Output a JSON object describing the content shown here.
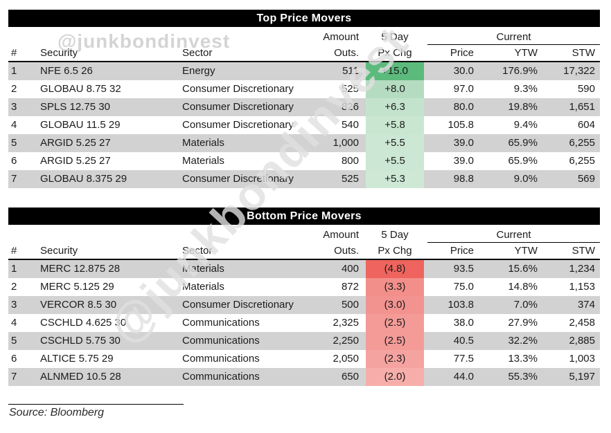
{
  "watermarks": {
    "header": "@junkbondinvest",
    "diagonal": "@junkbondinvest"
  },
  "columns": {
    "num": "#",
    "security": "Security",
    "sector": "Sector",
    "amount_line1": "Amount",
    "amount_line2": "Outs.",
    "chg_line1": "5 Day",
    "chg_line2": "Px Chg",
    "current_group": "Current",
    "price": "Price",
    "ytw": "YTW",
    "stw": "STW"
  },
  "colors": {
    "row_stripe": "#d2d2d2",
    "title_bar_bg": "#000000",
    "title_bar_text": "#ffffff",
    "gain_strong": "#5cba7d",
    "gain_light": "#cce7d3",
    "loss_strong": "#ef645e",
    "loss_light": "#f7aeab"
  },
  "tables": [
    {
      "title": "Top Price Movers",
      "rows": [
        {
          "num": "1",
          "security": "NFE 6.5 26",
          "sector": "Energy",
          "amount": "511",
          "px_chg": "+15.0",
          "px_chg_color": "#5cba7d",
          "price": "30.0",
          "ytw": "176.9%",
          "stw": "17,322"
        },
        {
          "num": "2",
          "security": "GLOBAU 8.75 32",
          "sector": "Consumer Discretionary",
          "amount": "525",
          "px_chg": "+8.0",
          "px_chg_color": "#b5dcc0",
          "price": "97.0",
          "ytw": "9.3%",
          "stw": "590"
        },
        {
          "num": "3",
          "security": "SPLS 12.75 30",
          "sector": "Consumer Discretionary",
          "amount": "826",
          "px_chg": "+6.3",
          "px_chg_color": "#c4e3cd",
          "price": "80.0",
          "ytw": "19.8%",
          "stw": "1,651"
        },
        {
          "num": "4",
          "security": "GLOBAU 11.5 29",
          "sector": "Consumer Discretionary",
          "amount": "540",
          "px_chg": "+5.8",
          "px_chg_color": "#c9e6d1",
          "price": "105.8",
          "ytw": "9.4%",
          "stw": "604"
        },
        {
          "num": "5",
          "security": "ARGID 5.25 27",
          "sector": "Materials",
          "amount": "1,000",
          "px_chg": "+5.5",
          "px_chg_color": "#cce7d3",
          "price": "39.0",
          "ytw": "65.9%",
          "stw": "6,255"
        },
        {
          "num": "6",
          "security": "ARGID 5.25 27",
          "sector": "Materials",
          "amount": "800",
          "px_chg": "+5.5",
          "px_chg_color": "#cce7d3",
          "price": "39.0",
          "ytw": "65.9%",
          "stw": "6,255"
        },
        {
          "num": "7",
          "security": "GLOBAU 8.375 29",
          "sector": "Consumer Discretionary",
          "amount": "525",
          "px_chg": "+5.3",
          "px_chg_color": "#cee8d5",
          "price": "98.8",
          "ytw": "9.0%",
          "stw": "569"
        }
      ]
    },
    {
      "title": "Bottom Price Movers",
      "rows": [
        {
          "num": "1",
          "security": "MERC 12.875 28",
          "sector": "Materials",
          "amount": "400",
          "px_chg": "(4.8)",
          "px_chg_color": "#ef645e",
          "price": "93.5",
          "ytw": "15.6%",
          "stw": "1,234"
        },
        {
          "num": "2",
          "security": "MERC 5.125 29",
          "sector": "Materials",
          "amount": "872",
          "px_chg": "(3.3)",
          "px_chg_color": "#f28f8a",
          "price": "75.0",
          "ytw": "14.8%",
          "stw": "1,153"
        },
        {
          "num": "3",
          "security": "VERCOR 8.5 30",
          "sector": "Consumer Discretionary",
          "amount": "500",
          "px_chg": "(3.0)",
          "px_chg_color": "#f29390",
          "price": "103.8",
          "ytw": "7.0%",
          "stw": "374"
        },
        {
          "num": "4",
          "security": "CSCHLD 4.625 30",
          "sector": "Communications",
          "amount": "2,325",
          "px_chg": "(2.5)",
          "px_chg_color": "#f49b98",
          "price": "38.0",
          "ytw": "27.9%",
          "stw": "2,458"
        },
        {
          "num": "5",
          "security": "CSCHLD 5.75 30",
          "sector": "Communications",
          "amount": "2,250",
          "px_chg": "(2.5)",
          "px_chg_color": "#f49b98",
          "price": "40.5",
          "ytw": "32.2%",
          "stw": "2,885"
        },
        {
          "num": "6",
          "security": "ALTICE 5.75 29",
          "sector": "Communications",
          "amount": "2,050",
          "px_chg": "(2.3)",
          "px_chg_color": "#f5a3a0",
          "price": "77.5",
          "ytw": "13.3%",
          "stw": "1,003"
        },
        {
          "num": "7",
          "security": "ALNMED 10.5 28",
          "sector": "Communications",
          "amount": "650",
          "px_chg": "(2.0)",
          "px_chg_color": "#f7aeab",
          "price": "44.0",
          "ytw": "55.3%",
          "stw": "5,197"
        }
      ]
    }
  ],
  "footer": {
    "source": "Source: Bloomberg"
  }
}
